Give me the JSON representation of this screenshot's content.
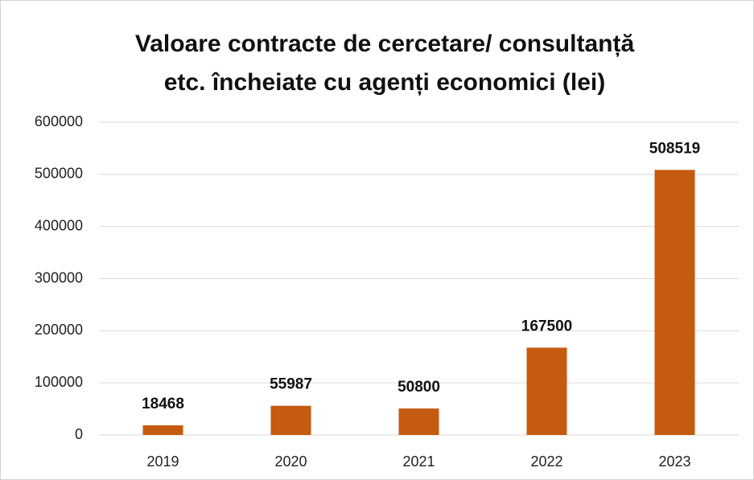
{
  "chart_data": {
    "type": "bar",
    "title": [
      "Valoare contracte de cercetare/ consultanță",
      "etc. încheiate cu agenți economici (lei)"
    ],
    "categories": [
      "2019",
      "2020",
      "2021",
      "2022",
      "2023"
    ],
    "values": [
      18468,
      55987,
      50800,
      167500,
      508519
    ],
    "color": "#c55a11",
    "ylim": [
      0,
      600000
    ],
    "yticks": [
      0,
      100000,
      200000,
      300000,
      400000,
      500000,
      600000
    ],
    "grid": true,
    "data_labels": true
  }
}
